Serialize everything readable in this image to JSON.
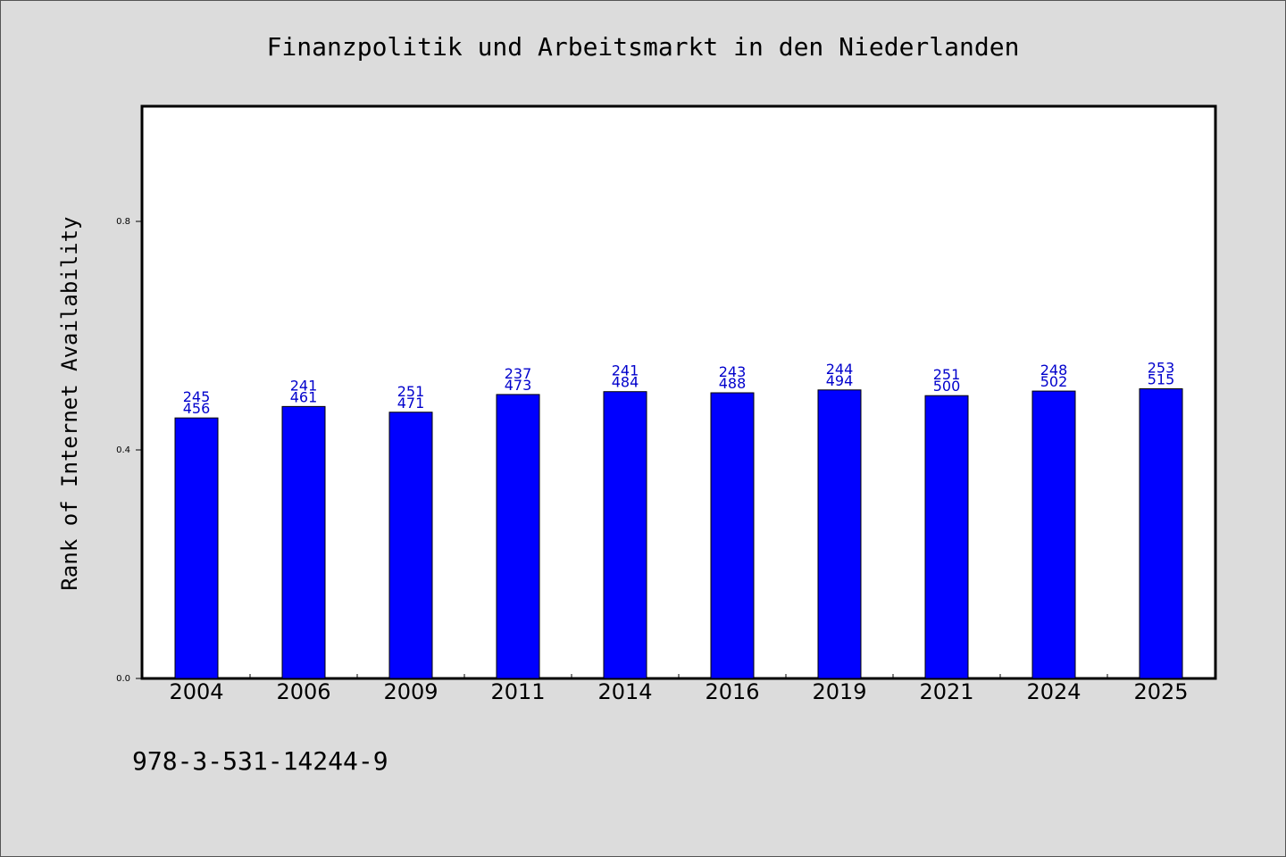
{
  "chart_data": {
    "type": "bar",
    "title": "Finanzpolitik und Arbeitsmarkt in den Niederlanden",
    "ylabel": "Rank of Internet Availability",
    "xlabel": "",
    "categories": [
      "2004",
      "2006",
      "2009",
      "2011",
      "2014",
      "2016",
      "2019",
      "2021",
      "2024",
      "2025"
    ],
    "values": [
      0.456,
      0.476,
      0.466,
      0.497,
      0.502,
      0.5,
      0.505,
      0.495,
      0.503,
      0.507
    ],
    "label_top": [
      "245",
      "241",
      "251",
      "237",
      "241",
      "243",
      "244",
      "251",
      "248",
      "253"
    ],
    "label_bottom": [
      "456",
      "461",
      "471",
      "473",
      "484",
      "488",
      "494",
      "500",
      "502",
      "515"
    ],
    "ylim": [
      0,
      1.0
    ],
    "yticks": [
      0.0,
      0.4,
      0.8
    ],
    "ytick_labels": [
      "0.0",
      "0.4",
      "0.8"
    ],
    "bar_color": "#0000ff",
    "label_color": "#0000cc",
    "grid": false,
    "legend": "none"
  },
  "annotation": "978-3-531-14244-9"
}
